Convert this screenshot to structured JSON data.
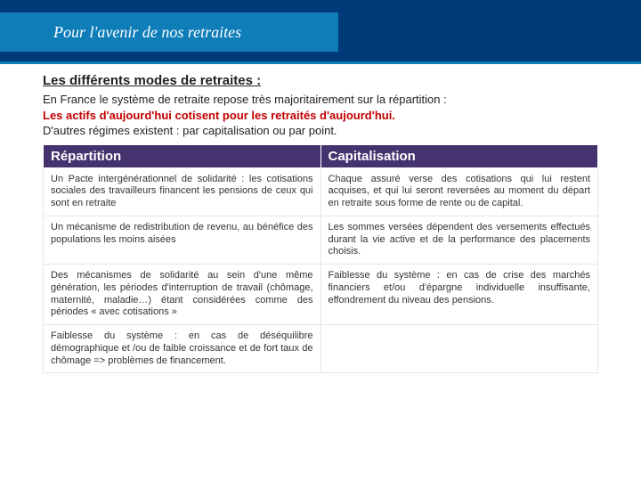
{
  "banner": {
    "title": "Pour l'avenir de nos retraites",
    "bg_color": "#003a78",
    "inner_color": "#0e7db8",
    "title_color": "#ffffff"
  },
  "section": {
    "title": "Les différents modes de retraites :",
    "intro1": "En France le système de retraite repose très majoritairement sur la répartition :",
    "highlight": "Les actifs d'aujourd'hui cotisent pour les retraités d'aujourd'hui.",
    "highlight_color": "#c00000",
    "intro2": "D'autres régimes existent : par capitalisation ou par point."
  },
  "table": {
    "header_bg": "#45336f",
    "col1_header": "Répartition",
    "col2_header": "Capitalisation",
    "rows": [
      {
        "left": "Un Pacte intergénérationnel de solidarité : les cotisations sociales des travailleurs financent les pensions de ceux qui sont en retraite",
        "right": "Chaque assuré verse des cotisations qui lui restent acquises, et qui lui seront reversées au moment du départ en retraite sous forme de rente ou de capital."
      },
      {
        "left": "Un mécanisme de redistribution de revenu, au bénéfice des populations les moins aisées",
        "right": "Les sommes versées dépendent des versements effectués durant la vie active et de la performance des placements choisis."
      },
      {
        "left": "Des mécanismes de solidarité au sein d'une même génération, les périodes d'interruption de travail (chômage, maternité, maladie…) étant considérées comme des périodes « avec cotisations »",
        "right": "Faiblesse du système : en cas de crise des marchés financiers et/ou d'épargne individuelle insuffisante, effondrement du niveau des pensions."
      },
      {
        "left": "Faiblesse du système : en cas de déséquilibre démographique et /ou de faible croissance et de fort taux de chômage => problèmes de financement.",
        "right": ""
      }
    ]
  }
}
